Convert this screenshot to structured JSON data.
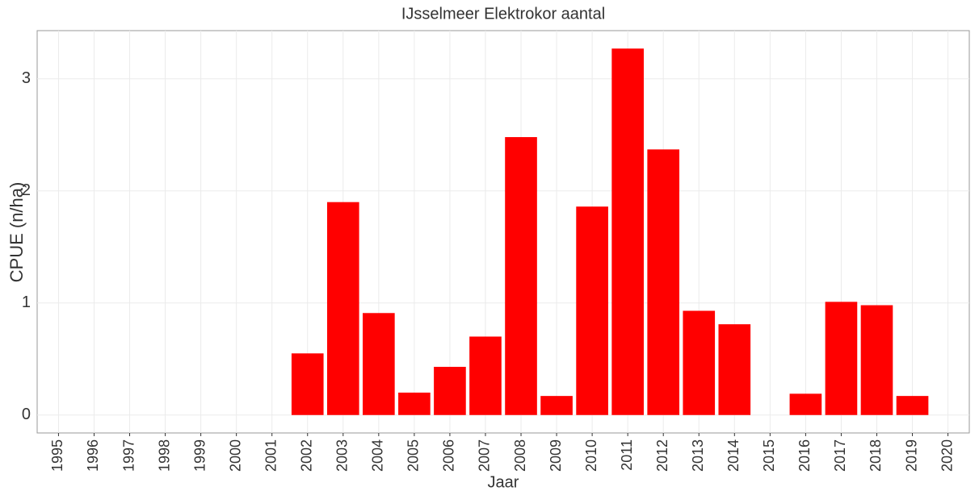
{
  "chart_data": {
    "type": "bar",
    "title": "IJsselmeer Elektrokor aantal",
    "x_label": "Jaar",
    "y_label": "CPUE (n/ha)",
    "categories": [
      "1995",
      "1996",
      "1997",
      "1998",
      "1999",
      "2000",
      "2001",
      "2002",
      "2003",
      "2004",
      "2005",
      "2006",
      "2007",
      "2008",
      "2009",
      "2010",
      "2011",
      "2012",
      "2013",
      "2014",
      "2015",
      "2016",
      "2017",
      "2018",
      "2019",
      "2020"
    ],
    "values": [
      null,
      null,
      null,
      null,
      null,
      null,
      null,
      0.55,
      1.9,
      0.91,
      0.2,
      0.43,
      0.7,
      2.48,
      0.17,
      1.86,
      3.27,
      2.37,
      0.93,
      0.81,
      null,
      0.19,
      1.01,
      0.98,
      0.17,
      null
    ],
    "color": "#ff0000",
    "ylim": [
      -0.16,
      3.43
    ],
    "yticks": [
      0,
      1,
      2,
      3
    ],
    "grid": true
  }
}
